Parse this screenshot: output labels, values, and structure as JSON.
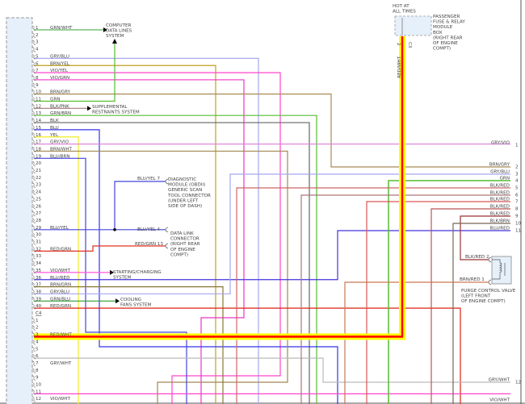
{
  "connector_left": {
    "pins": [
      {
        "pin": "1",
        "wire": "GRN/WHT"
      },
      {
        "pin": "2",
        "wire": ""
      },
      {
        "pin": "3",
        "wire": ""
      },
      {
        "pin": "4",
        "wire": ""
      },
      {
        "pin": "5",
        "wire": "GRY/BLU"
      },
      {
        "pin": "6",
        "wire": "BRN/YEL"
      },
      {
        "pin": "7",
        "wire": "VIO/YEL"
      },
      {
        "pin": "8",
        "wire": "VIO/GRN"
      },
      {
        "pin": "9",
        "wire": ""
      },
      {
        "pin": "10",
        "wire": "BRN/GRY"
      },
      {
        "pin": "11",
        "wire": "GRN"
      },
      {
        "pin": "12",
        "wire": "BLK/PNK"
      },
      {
        "pin": "13",
        "wire": "GRN/BRN"
      },
      {
        "pin": "14",
        "wire": "BLK"
      },
      {
        "pin": "15",
        "wire": "BLU"
      },
      {
        "pin": "16",
        "wire": "YEL"
      },
      {
        "pin": "17",
        "wire": "GRY/VIO"
      },
      {
        "pin": "18",
        "wire": "BRN/WHT"
      },
      {
        "pin": "19",
        "wire": "BLU/BRN"
      },
      {
        "pin": "20",
        "wire": ""
      },
      {
        "pin": "21",
        "wire": ""
      },
      {
        "pin": "22",
        "wire": ""
      },
      {
        "pin": "23",
        "wire": ""
      },
      {
        "pin": "24",
        "wire": ""
      },
      {
        "pin": "25",
        "wire": ""
      },
      {
        "pin": "26",
        "wire": ""
      },
      {
        "pin": "27",
        "wire": ""
      },
      {
        "pin": "28",
        "wire": ""
      },
      {
        "pin": "29",
        "wire": "BLU/YEL"
      },
      {
        "pin": "30",
        "wire": ""
      },
      {
        "pin": "31",
        "wire": ""
      },
      {
        "pin": "32",
        "wire": "RED/GRN"
      },
      {
        "pin": "33",
        "wire": ""
      },
      {
        "pin": "34",
        "wire": ""
      },
      {
        "pin": "35",
        "wire": "VIO/WHT"
      },
      {
        "pin": "36",
        "wire": "BLU/RED"
      },
      {
        "pin": "37",
        "wire": "BRN/GRN"
      },
      {
        "pin": "38",
        "wire": "GRY/BLU"
      },
      {
        "pin": "39",
        "wire": "GRN/BLU"
      },
      {
        "pin": "40",
        "wire": "RED/GRN"
      },
      {
        "pin": "C4",
        "wire": ""
      },
      {
        "pin": "1",
        "wire": ""
      },
      {
        "pin": "2",
        "wire": ""
      },
      {
        "pin": "3",
        "wire": "RED/WHT"
      },
      {
        "pin": "4",
        "wire": ""
      },
      {
        "pin": "5",
        "wire": ""
      },
      {
        "pin": "6",
        "wire": ""
      },
      {
        "pin": "7",
        "wire": "GRY/WHT"
      },
      {
        "pin": "8",
        "wire": ""
      },
      {
        "pin": "9",
        "wire": ""
      },
      {
        "pin": "10",
        "wire": ""
      },
      {
        "pin": "11",
        "wire": ""
      },
      {
        "pin": "12",
        "wire": "VIO/WHT"
      }
    ]
  },
  "connector_right": {
    "pins": [
      {
        "pin": "1",
        "wire": "GRY/VIO"
      },
      {
        "pin": "2",
        "wire": "BRN/GRY"
      },
      {
        "pin": "3",
        "wire": "GRY/BLU"
      },
      {
        "pin": "4",
        "wire": "GRN"
      },
      {
        "pin": "5",
        "wire": "BLK/RED"
      },
      {
        "pin": "6",
        "wire": "BLK/RED"
      },
      {
        "pin": "7",
        "wire": "BLK/RED"
      },
      {
        "pin": "8",
        "wire": "BLK/RED"
      },
      {
        "pin": "9",
        "wire": "BLK/RED"
      },
      {
        "pin": "10",
        "wire": "BLK/BRN"
      },
      {
        "pin": "11",
        "wire": "BLU/RED"
      },
      {
        "pin": "12",
        "wire": "GRY/WHT"
      },
      {
        "pin": "",
        "wire": "VIO/WHT"
      }
    ]
  },
  "components": {
    "computer_data_lines": [
      "COMPUTER",
      "DATA LINES",
      "SYSTEM"
    ],
    "supplemental_restraints": [
      "SUPPLEMENTAL",
      "RESTRAINTS SYSTEM"
    ],
    "diagnostic_module": [
      "DIAGNOSTIC",
      "MODULE (OBDII)",
      "GENERIC SCAN",
      "TOOL CONNECTOR",
      "(UNDER LEFT",
      "SIDE OF DASH)"
    ],
    "data_link_connector": [
      "DATA LINK",
      "CONNECTOR",
      "(RIGHT REAR",
      "OF ENGINE",
      "COMPT)"
    ],
    "starting_charging": [
      "STARTING/CHARGING",
      "SYSTEM"
    ],
    "cooling_fans": [
      "COOLING",
      "FANS SYSTEM"
    ],
    "hot_at_all_times": [
      "HOT AT",
      "ALL TIMES"
    ],
    "fuse_box": [
      "PASSENGER",
      "FUSE & RELAY",
      "MODULE",
      "BOX",
      "(RIGHT REAR",
      "OF ENGINE",
      "COMPT)"
    ],
    "purge_valve": [
      "PURGE CONTROL VALVE",
      "(LEFT FRONT",
      "OF ENGINE COMPT)"
    ]
  },
  "pin_labels": {
    "diag_pin": "BLU/YEL   7",
    "dlc_pin4": "BLU/YEL   4",
    "dlc_pin13": "RED/GRN  13",
    "purge_pin2": "BLK/RED  2",
    "purge_pin1": "BRN/RED    1",
    "fuse_pin_a": "2",
    "fuse_pin_b": "C3",
    "fuse_wire": "RED/WHT"
  },
  "colors": {
    "connector_fill": "#e6f0fa",
    "power_highlight": "#ffff00",
    "power_wire": "#ff0000"
  }
}
